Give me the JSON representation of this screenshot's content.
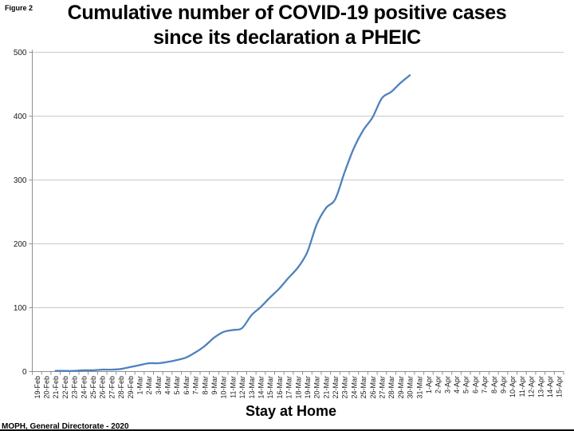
{
  "figure_label": "Figure 2",
  "title_lines": [
    "Cumulative number of COVID-19 positive cases",
    "since its declaration a PHEIC"
  ],
  "source": "MOPH, General Directorate - 2020",
  "chart_data": {
    "type": "line",
    "title": "Cumulative number of COVID-19 positive cases since its declaration a PHEIC",
    "xlabel": "Stay at Home",
    "ylabel": "",
    "ylim": [
      0,
      500
    ],
    "yticks": [
      0,
      100,
      200,
      300,
      400,
      500
    ],
    "grid": true,
    "legend": "none",
    "line_color": "#4F81BD",
    "gridline_color": "#c9c9c9",
    "axis_color": "#8e8e8e",
    "tick_label_color": "#1a1a1a",
    "categories": [
      "19-Feb",
      "20-Feb",
      "21-Feb",
      "22-Feb",
      "23-Feb",
      "24-Feb",
      "25-Feb",
      "26-Feb",
      "27-Feb",
      "28-Feb",
      "29-Feb",
      "1-Mar",
      "2-Mar",
      "3-Mar",
      "4-Mar",
      "5-Mar",
      "6-Mar",
      "7-Mar",
      "8-Mar",
      "9-Mar",
      "10-Mar",
      "11-Mar",
      "12-Mar",
      "13-Mar",
      "14-Mar",
      "15-Mar",
      "16-Mar",
      "17-Mar",
      "18-Mar",
      "19-Mar",
      "20-Mar",
      "21-Mar",
      "22-Mar",
      "23-Mar",
      "24-Mar",
      "25-Mar",
      "26-Mar",
      "27-Mar",
      "28-Mar",
      "29-Mar",
      "30-Mar",
      "31-Mar",
      "1-Apr",
      "2-Apr",
      "3-Apr",
      "4-Apr",
      "5-Apr",
      "6-Apr",
      "7-Apr",
      "8-Apr",
      "9-Apr",
      "10-Apr",
      "11-Apr",
      "12-Apr",
      "13-Apr",
      "14-Apr",
      "15-Apr"
    ],
    "values": [
      null,
      null,
      1,
      1,
      1,
      2,
      2,
      3,
      3,
      4,
      7,
      10,
      13,
      13,
      15,
      18,
      22,
      30,
      40,
      53,
      62,
      65,
      68,
      88,
      101,
      116,
      130,
      147,
      163,
      187,
      230,
      256,
      270,
      312,
      350,
      378,
      398,
      428,
      438,
      452,
      464,
      null,
      null,
      null,
      null,
      null,
      null,
      null,
      null,
      null,
      null,
      null,
      null,
      null,
      null,
      null,
      null
    ]
  }
}
